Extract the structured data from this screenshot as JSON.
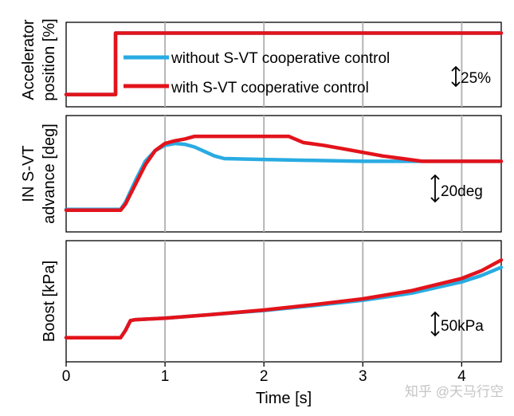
{
  "chart_data": [
    {
      "type": "line",
      "ylabel_lines": [
        "Accelerator",
        "position [%]"
      ],
      "xlim": [
        0,
        4.4
      ],
      "ylim": [
        0,
        100
      ],
      "scale_bar": "25%",
      "legend": {
        "placement": "inside-top"
      },
      "series": [
        {
          "name": "without S-VT cooperative control",
          "color": "#29abe2",
          "x": [
            0,
            0.5,
            0.5,
            4.4
          ],
          "values": [
            10,
            10,
            92,
            92
          ]
        },
        {
          "name": "with S-VT cooperative control",
          "color": "#e3131b",
          "x": [
            0,
            0.5,
            0.5,
            4.4
          ],
          "values": [
            10,
            10,
            92,
            92
          ]
        }
      ]
    },
    {
      "type": "line",
      "ylabel_lines": [
        "IN S-VT",
        "advance [deg]"
      ],
      "xlim": [
        0,
        4.4
      ],
      "ylim": [
        0,
        60
      ],
      "scale_bar": "20deg",
      "series": [
        {
          "name": "without S-VT cooperative control",
          "color": "#29abe2",
          "x": [
            0,
            0.55,
            0.6,
            0.7,
            0.8,
            0.9,
            1.0,
            1.1,
            1.2,
            1.3,
            1.4,
            1.5,
            1.6,
            2.0,
            2.5,
            3.0,
            3.5,
            4.4
          ],
          "values": [
            10,
            10,
            14,
            26,
            37,
            43,
            46,
            47,
            46.5,
            45,
            42.5,
            40,
            38.5,
            38,
            37.5,
            37,
            37,
            37
          ]
        },
        {
          "name": "with S-VT cooperative control",
          "color": "#e3131b",
          "x": [
            0,
            0.55,
            0.6,
            0.7,
            0.8,
            0.9,
            1.0,
            1.1,
            1.2,
            1.3,
            2.0,
            2.25,
            2.4,
            2.6,
            2.8,
            3.0,
            3.2,
            3.4,
            3.6,
            4.4
          ],
          "values": [
            9.5,
            9.5,
            13,
            24,
            35,
            43,
            47,
            48.5,
            49.5,
            51,
            51,
            51,
            47.5,
            46,
            44,
            42,
            40,
            38.5,
            37,
            37
          ]
        }
      ]
    },
    {
      "type": "line",
      "ylabel_lines": [
        "Boost [kPa]"
      ],
      "xlabel": "Time [s]",
      "xlim": [
        0,
        4.4
      ],
      "ylim": [
        0,
        230
      ],
      "xticks": [
        "0",
        "1",
        "2",
        "3",
        "4"
      ],
      "scale_bar": "50kPa",
      "series": [
        {
          "name": "without S-VT cooperative control",
          "color": "#29abe2",
          "x": [
            0,
            0.55,
            0.6,
            0.65,
            0.7,
            1.0,
            1.5,
            2.0,
            2.5,
            3.0,
            3.5,
            4.0,
            4.2,
            4.4
          ],
          "values": [
            40,
            40,
            55,
            75,
            77,
            80,
            88,
            96,
            106,
            117,
            132,
            155,
            168,
            185
          ]
        },
        {
          "name": "with S-VT cooperative control",
          "color": "#e3131b",
          "x": [
            0,
            0.55,
            0.6,
            0.65,
            0.7,
            1.0,
            1.5,
            2.0,
            2.5,
            3.0,
            3.5,
            4.0,
            4.2,
            4.4
          ],
          "values": [
            40,
            40,
            55,
            75,
            77,
            80,
            88,
            97,
            108,
            120,
            137,
            162,
            178,
            200
          ]
        }
      ]
    }
  ],
  "watermark": "知乎 @天马行空"
}
